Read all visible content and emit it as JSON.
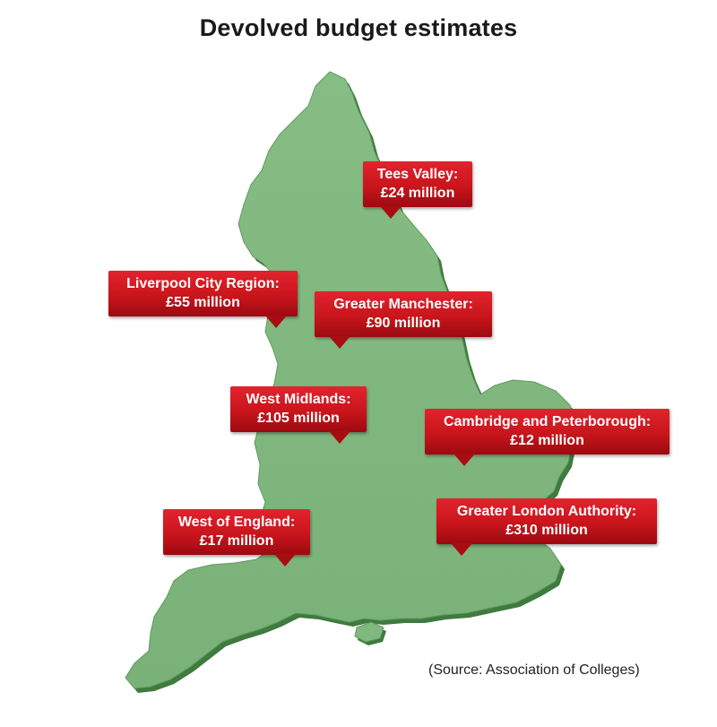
{
  "title": "Devolved budget estimates",
  "source": "(Source: Association of Colleges)",
  "colors": {
    "land": "#7fb77e",
    "land_edge": "#4e8a4d",
    "label_red": "#d21820"
  },
  "regions": [
    {
      "id": "tees-valley",
      "name": "Tees Valley:",
      "budget": "£24 million"
    },
    {
      "id": "liverpool-city-region",
      "name": "Liverpool City Region:",
      "budget": "£55 million"
    },
    {
      "id": "greater-manchester",
      "name": "Greater Manchester:",
      "budget": "£90 million"
    },
    {
      "id": "west-midlands",
      "name": "West Midlands:",
      "budget": "£105 million"
    },
    {
      "id": "cambridge-peterborough",
      "name": "Cambridge and Peterborough:",
      "budget": "£12 million"
    },
    {
      "id": "west-of-england",
      "name": "West of England:",
      "budget": "£17 million"
    },
    {
      "id": "greater-london",
      "name": "Greater London Authority:",
      "budget": "£310 million"
    }
  ]
}
